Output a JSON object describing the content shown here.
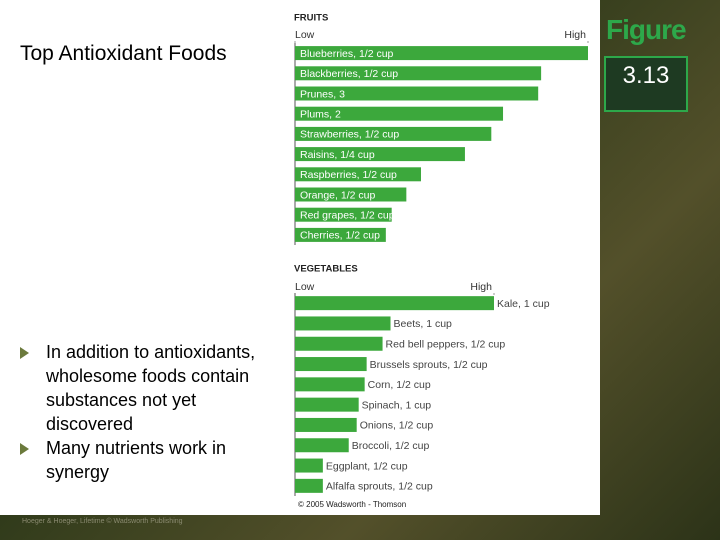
{
  "slide": {
    "title": "Top Antioxidant Foods",
    "bullets": [
      "In addition to antioxidants, wholesome foods contain substances not yet discovered",
      "Many nutrients work in synergy"
    ],
    "figure_word": "Figure",
    "figure_number": "3.13",
    "copyright": "© 2005 Wadsworth - Thomson",
    "footer": "Hoeger & Hoeger, Lifetime © Wadsworth Publishing"
  },
  "chart_data": [
    {
      "type": "barh",
      "title": "FRUITS",
      "color": "#3ca83c",
      "categories": [
        "Blueberries, 1/2 cup",
        "Blackberries, 1/2 cup",
        "Prunes, 3",
        "Plums, 2",
        "Strawberries, 1/2 cup",
        "Raisins, 1/4 cup",
        "Raspberries, 1/2 cup",
        "Orange, 1/2 cup",
        "Red grapes, 1/2 cup",
        "Cherries, 1/2 cup"
      ],
      "values": [
        100,
        84,
        83,
        71,
        67,
        58,
        43,
        38,
        33,
        31
      ],
      "xlim": [
        0,
        100
      ],
      "xticks": [
        {
          "value": 0,
          "label": "Low"
        },
        {
          "value": 100,
          "label": "High"
        }
      ]
    },
    {
      "type": "barh",
      "title": "VEGETABLES",
      "color": "#3ca83c",
      "categories": [
        "Kale, 1 cup",
        "Beets, 1 cup",
        "Red bell peppers, 1/2 cup",
        "Brussels sprouts, 1/2 cup",
        "Corn, 1/2 cup",
        "Spinach, 1 cup",
        "Onions, 1/2 cup",
        "Broccoli, 1/2 cup",
        "Eggplant, 1/2 cup",
        "Alfalfa sprouts, 1/2 cup"
      ],
      "values": [
        100,
        48,
        44,
        36,
        35,
        32,
        31,
        27,
        14,
        14
      ],
      "xlim": [
        0,
        100
      ],
      "xticks": [
        {
          "value": 0,
          "label": "Low"
        },
        {
          "value": 100,
          "label": "High"
        }
      ]
    }
  ]
}
